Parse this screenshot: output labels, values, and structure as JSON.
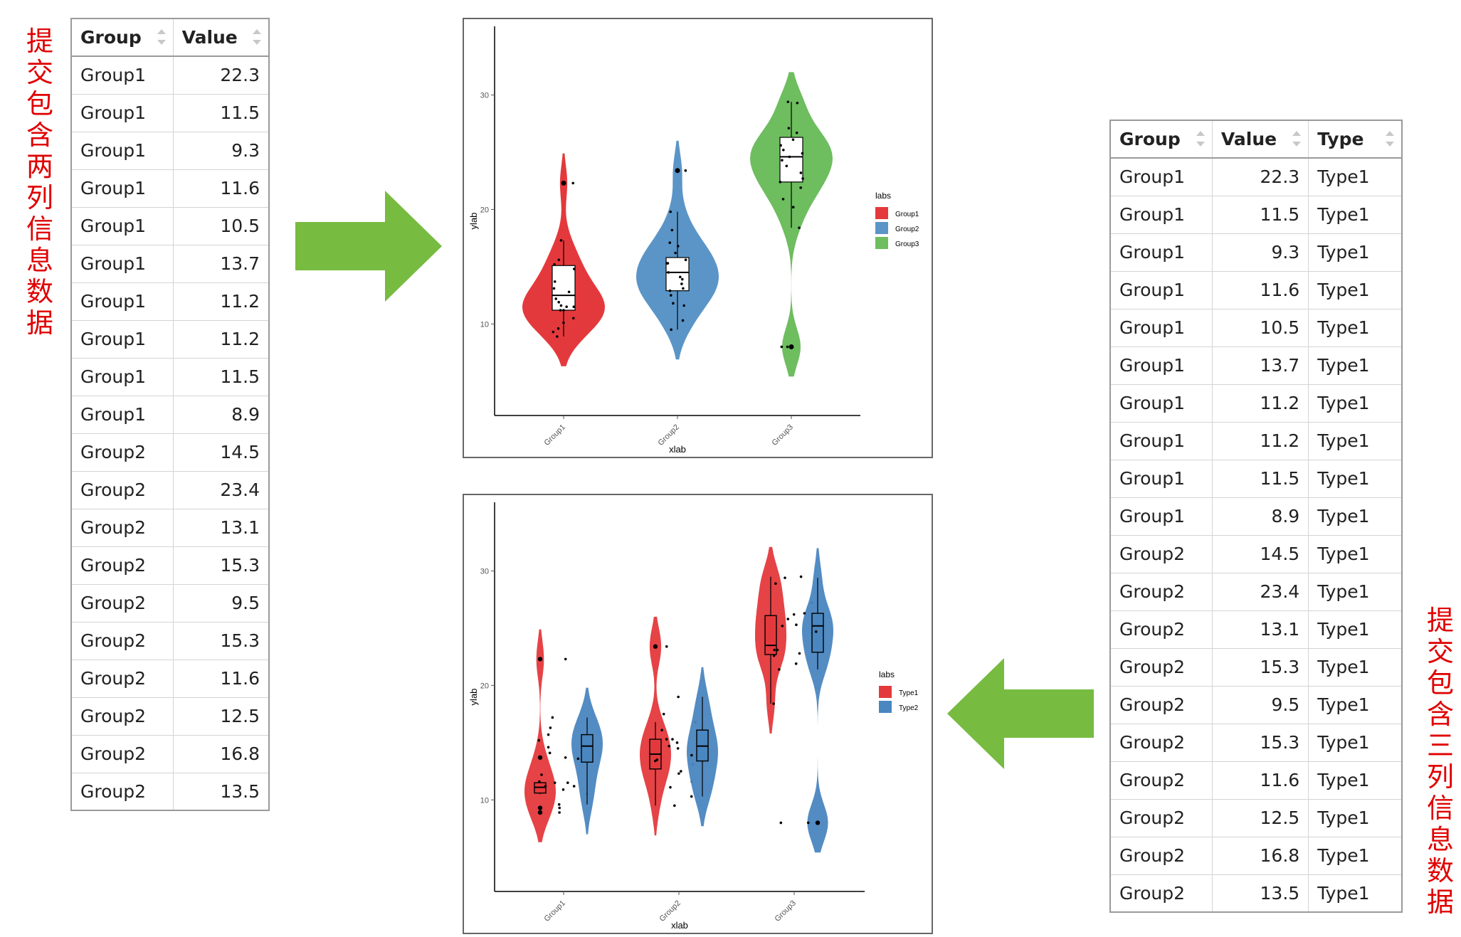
{
  "labels": {
    "left": "提交包含两列信息数据",
    "right": "提交包含三列信息数据"
  },
  "left_table": {
    "columns": [
      "Group",
      "Value"
    ],
    "rows": [
      [
        "Group1",
        "22.3"
      ],
      [
        "Group1",
        "11.5"
      ],
      [
        "Group1",
        "9.3"
      ],
      [
        "Group1",
        "11.6"
      ],
      [
        "Group1",
        "10.5"
      ],
      [
        "Group1",
        "13.7"
      ],
      [
        "Group1",
        "11.2"
      ],
      [
        "Group1",
        "11.2"
      ],
      [
        "Group1",
        "11.5"
      ],
      [
        "Group1",
        "8.9"
      ],
      [
        "Group2",
        "14.5"
      ],
      [
        "Group2",
        "23.4"
      ],
      [
        "Group2",
        "13.1"
      ],
      [
        "Group2",
        "15.3"
      ],
      [
        "Group2",
        "9.5"
      ],
      [
        "Group2",
        "15.3"
      ],
      [
        "Group2",
        "11.6"
      ],
      [
        "Group2",
        "12.5"
      ],
      [
        "Group2",
        "16.8"
      ],
      [
        "Group2",
        "13.5"
      ]
    ]
  },
  "right_table": {
    "columns": [
      "Group",
      "Value",
      "Type"
    ],
    "rows": [
      [
        "Group1",
        "22.3",
        "Type1"
      ],
      [
        "Group1",
        "11.5",
        "Type1"
      ],
      [
        "Group1",
        "9.3",
        "Type1"
      ],
      [
        "Group1",
        "11.6",
        "Type1"
      ],
      [
        "Group1",
        "10.5",
        "Type1"
      ],
      [
        "Group1",
        "13.7",
        "Type1"
      ],
      [
        "Group1",
        "11.2",
        "Type1"
      ],
      [
        "Group1",
        "11.2",
        "Type1"
      ],
      [
        "Group1",
        "11.5",
        "Type1"
      ],
      [
        "Group1",
        "8.9",
        "Type1"
      ],
      [
        "Group2",
        "14.5",
        "Type1"
      ],
      [
        "Group2",
        "23.4",
        "Type1"
      ],
      [
        "Group2",
        "13.1",
        "Type1"
      ],
      [
        "Group2",
        "15.3",
        "Type1"
      ],
      [
        "Group2",
        "9.5",
        "Type1"
      ],
      [
        "Group2",
        "15.3",
        "Type1"
      ],
      [
        "Group2",
        "11.6",
        "Type1"
      ],
      [
        "Group2",
        "12.5",
        "Type1"
      ],
      [
        "Group2",
        "16.8",
        "Type1"
      ],
      [
        "Group2",
        "13.5",
        "Type1"
      ]
    ]
  },
  "colors": {
    "arrow": "#77bb41",
    "label": "#e00000"
  },
  "chart_data": [
    {
      "type": "violin",
      "xlabel": "xlab",
      "ylabel": "ylab",
      "yticks": [
        10,
        20,
        30
      ],
      "ylim": [
        2,
        36
      ],
      "categories": [
        "Group1",
        "Group2",
        "Group3"
      ],
      "legend": {
        "title": "labs",
        "position": "right",
        "entries": [
          {
            "name": "Group1",
            "color": "#e4393c"
          },
          {
            "name": "Group2",
            "color": "#5b95c8"
          },
          {
            "name": "Group3",
            "color": "#6ebd5f"
          }
        ]
      },
      "series": [
        {
          "name": "Group1",
          "color": "#e4393c",
          "box": {
            "q1": 11.2,
            "median": 12.5,
            "q3": 15.1,
            "whisker_low": 8.9,
            "whisker_high": 17.3
          },
          "outliers": [
            22.3
          ],
          "points": [
            22.3,
            11.5,
            9.3,
            11.6,
            10.5,
            13.7,
            11.2,
            11.2,
            11.5,
            8.9,
            15.2,
            14.8,
            17.3,
            12.2,
            10.1,
            9.6,
            13.1,
            12.8,
            15.6,
            11.9
          ]
        },
        {
          "name": "Group2",
          "color": "#5b95c8",
          "box": {
            "q1": 12.9,
            "median": 14.5,
            "q3": 15.8,
            "whisker_low": 9.5,
            "whisker_high": 19.8
          },
          "outliers": [
            23.4
          ],
          "points": [
            14.5,
            23.4,
            13.1,
            15.3,
            9.5,
            15.3,
            11.6,
            12.5,
            16.8,
            13.5,
            19.8,
            16.2,
            17.1,
            14.1,
            12.9,
            10.3,
            15.6,
            18.2,
            13.9,
            11.8
          ]
        },
        {
          "name": "Group3",
          "color": "#6ebd5f",
          "box": {
            "q1": 22.4,
            "median": 24.6,
            "q3": 26.3,
            "whisker_low": 18.4,
            "whisker_high": 29.4
          },
          "outliers": [
            8.0
          ],
          "points": [
            29.4,
            29.3,
            27.1,
            26.7,
            26.1,
            25.6,
            25.2,
            24.9,
            24.6,
            24.3,
            23.8,
            23.2,
            22.7,
            22.4,
            21.9,
            20.9,
            20.2,
            18.4,
            8.0,
            8.0
          ]
        }
      ]
    },
    {
      "type": "violin",
      "xlabel": "xlab",
      "ylabel": "ylab",
      "yticks": [
        10,
        20,
        30
      ],
      "ylim": [
        2,
        36
      ],
      "categories": [
        "Group1",
        "Group2",
        "Group3"
      ],
      "legend": {
        "title": "labs",
        "position": "right",
        "entries": [
          {
            "name": "Type1",
            "color": "#e4393c"
          },
          {
            "name": "Type2",
            "color": "#4a86c0"
          }
        ]
      },
      "series": [
        {
          "name": "Type1",
          "color": "#e4393c",
          "groups": [
            {
              "box": {
                "q1": 10.6,
                "median": 11.1,
                "q3": 11.5,
                "whisker_low": 10.5,
                "whisker_high": 11.6
              },
              "outliers": [
                22.3,
                13.7,
                9.3,
                8.9
              ],
              "points": [
                11.5,
                11.6,
                11.2,
                11.2,
                10.5,
                9.3,
                8.9,
                13.7,
                22.3,
                11.5
              ]
            },
            {
              "box": {
                "q1": 12.7,
                "median": 14.0,
                "q3": 15.3,
                "whisker_low": 9.5,
                "whisker_high": 16.8
              },
              "outliers": [
                23.4
              ],
              "points": [
                14.5,
                23.4,
                13.1,
                15.3,
                9.5,
                15.3,
                11.6,
                12.5,
                16.8,
                13.5
              ]
            },
            {
              "box": {
                "q1": 22.7,
                "median": 23.5,
                "q3": 26.1,
                "whisker_low": 18.4,
                "whisker_high": 29.5
              },
              "outliers": [],
              "points": [
                29.5,
                26.2,
                24.6,
                22.8,
                27.2,
                18.4,
                23.1,
                25.3,
                28.9,
                21.9
              ]
            }
          ]
        },
        {
          "name": "Type2",
          "color": "#4a86c0",
          "groups": [
            {
              "box": {
                "q1": 13.3,
                "median": 14.7,
                "q3": 15.7,
                "whisker_low": 9.6,
                "whisker_high": 17.2
              },
              "outliers": [],
              "points": [
                15.2,
                14.1,
                16.3,
                13.6,
                12.2,
                10.9,
                9.6,
                15.7,
                14.6,
                17.2
              ]
            },
            {
              "box": {
                "q1": 13.4,
                "median": 14.7,
                "q3": 16.1,
                "whisker_low": 10.3,
                "whisker_high": 19.0
              },
              "outliers": [],
              "points": [
                16.1,
                15.0,
                14.7,
                13.4,
                12.3,
                11.1,
                10.3,
                17.5,
                19.0,
                13.9
              ]
            },
            {
              "box": {
                "q1": 22.9,
                "median": 25.2,
                "q3": 26.3,
                "whisker_low": 21.4,
                "whisker_high": 29.4
              },
              "outliers": [
                8.0
              ],
              "points": [
                29.4,
                26.3,
                25.8,
                25.2,
                24.7,
                23.1,
                22.6,
                21.4,
                8.0,
                8.0
              ]
            }
          ]
        }
      ]
    }
  ]
}
